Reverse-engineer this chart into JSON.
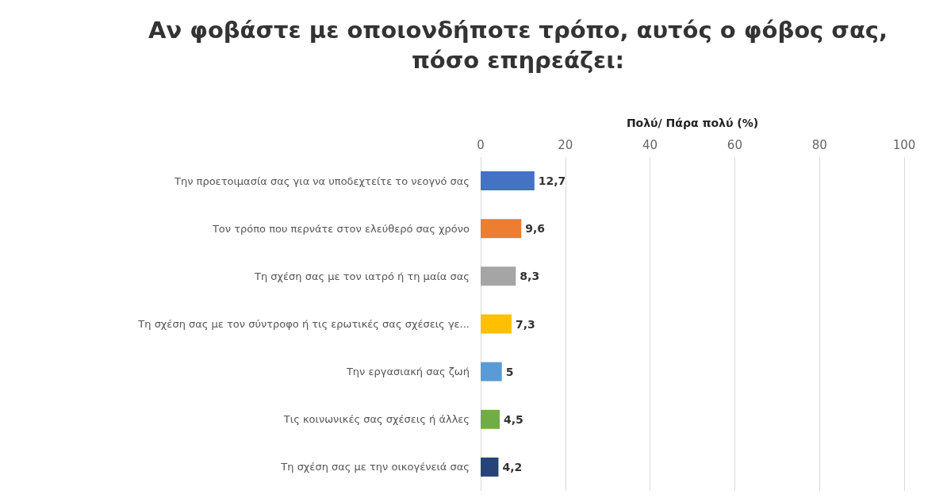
{
  "chart_data": {
    "type": "bar",
    "orientation": "horizontal",
    "title": "Αν φοβάστε με οποιονδήποτε τρόπο, αυτός ο φόβος σας,\nπόσο επηρεάζει:",
    "xlabel": "Πολύ/ Πάρα πολύ (%)",
    "categories": [
      "Την προετοιμασία σας για να υποδεχτείτε το νεογνό σας",
      "Τον τρόπο που περνάτε στον ελεύθερό σας χρόνο",
      "Τη σχέση σας με τον ιατρό ή τη μαία σας",
      "Τη σχέση σας με τον σύντροφο ή τις ερωτικές σας σχέσεις γε...",
      "Την εργασιακή σας ζωή",
      "Τις κοινωνικές σας σχέσεις ή άλλες",
      "Τη σχέση σας με την οικογένειά σας"
    ],
    "values": [
      12.7,
      9.6,
      8.3,
      7.3,
      5,
      4.5,
      4.2
    ],
    "value_labels": [
      "12,7",
      "9,6",
      "8,3",
      "7,3",
      "5",
      "4,5",
      "4,2"
    ],
    "colors": [
      "#4472c4",
      "#ed7d31",
      "#a5a5a5",
      "#ffc000",
      "#5b9bd5",
      "#70ad47",
      "#264478"
    ],
    "xlim": [
      0,
      100
    ],
    "xticks": [
      0,
      20,
      40,
      60,
      80,
      100
    ],
    "grid": "x"
  }
}
